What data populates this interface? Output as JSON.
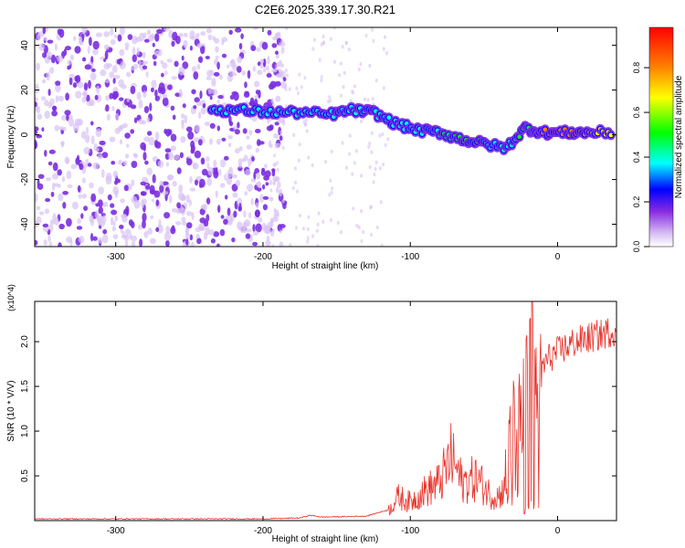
{
  "title": "C2E6.2025.339.17.30.R21",
  "colors": {
    "snr_line": "#e8342c",
    "axis": "#000000",
    "spectro_purple": "#7a2ee0",
    "spectro_light": "#d9c2f5"
  },
  "chart_data": [
    {
      "type": "heatmap",
      "xlabel": "Height of straight line (km)",
      "ylabel": "Frequency (Hz)",
      "xlim": [
        -355,
        40
      ],
      "ylim": [
        -50,
        48
      ],
      "x_ticks": [
        -300,
        -200,
        -100,
        0
      ],
      "x_tick_labels": [
        "-300",
        "-200",
        "-100",
        "0"
      ],
      "y_ticks": [
        -40,
        -20,
        0,
        20,
        40
      ],
      "y_tick_labels": [
        "-40",
        "-20",
        "0",
        "20",
        "40"
      ],
      "colorbar": {
        "label": "Normalized spectral amplitude",
        "range": [
          0,
          0.98
        ],
        "ticks": [
          0.0,
          0.2,
          0.4,
          0.6,
          0.8
        ],
        "tick_labels": [
          "0.0",
          "0.2",
          "0.4",
          "0.6",
          "0.8"
        ],
        "colormap": [
          "#ffffff",
          "#d7bff5",
          "#8a2be2",
          "#0000ff",
          "#00ffff",
          "#00ff00",
          "#ffff00",
          "#ff8000",
          "#ff0000"
        ]
      },
      "ridge": [
        {
          "x": -235,
          "y": 11,
          "amp": 0.45
        },
        {
          "x": -215,
          "y": 11,
          "amp": 0.5
        },
        {
          "x": -195,
          "y": 10,
          "amp": 0.55
        },
        {
          "x": -175,
          "y": 10,
          "amp": 0.55
        },
        {
          "x": -155,
          "y": 9,
          "amp": 0.5
        },
        {
          "x": -140,
          "y": 11,
          "amp": 0.5
        },
        {
          "x": -125,
          "y": 10,
          "amp": 0.45
        },
        {
          "x": -110,
          "y": 5,
          "amp": 0.5
        },
        {
          "x": -95,
          "y": 2,
          "amp": 0.55
        },
        {
          "x": -80,
          "y": 1,
          "amp": 0.55
        },
        {
          "x": -65,
          "y": -2,
          "amp": 0.6
        },
        {
          "x": -50,
          "y": -4,
          "amp": 0.55
        },
        {
          "x": -35,
          "y": -6,
          "amp": 0.5
        },
        {
          "x": -22,
          "y": 3,
          "amp": 0.6
        },
        {
          "x": -10,
          "y": 1,
          "amp": 0.8
        },
        {
          "x": 5,
          "y": 1,
          "amp": 0.85
        },
        {
          "x": 20,
          "y": 1,
          "amp": 0.8
        },
        {
          "x": 38,
          "y": 1,
          "amp": 0.75
        }
      ],
      "noise_region_xmax": -195
    },
    {
      "type": "line",
      "xlabel": "Height of straight line (km)",
      "ylabel": "SNR (10 * V/V)",
      "y_multiplier_label": "(x10^4)",
      "xlim": [
        -355,
        40
      ],
      "ylim": [
        0,
        2.45
      ],
      "x_ticks": [
        -300,
        -200,
        -100,
        0
      ],
      "x_tick_labels": [
        "-300",
        "-200",
        "-100",
        "0"
      ],
      "y_ticks": [
        0.5,
        1.0,
        1.5,
        2.0
      ],
      "y_tick_labels": [
        "0.5",
        "1.0",
        "1.5",
        "2.0"
      ],
      "series": [
        {
          "x": [
            -355,
            -300,
            -250,
            -200,
            -175,
            -168,
            -160,
            -130,
            -115,
            -108,
            -100,
            -90,
            -80,
            -72,
            -65,
            -55,
            -45,
            -38,
            -30,
            -25,
            -20,
            -18,
            -15,
            -12,
            -10,
            -5,
            0,
            5,
            10,
            20,
            30,
            40
          ],
          "y": [
            0.02,
            0.02,
            0.02,
            0.02,
            0.03,
            0.06,
            0.04,
            0.05,
            0.12,
            0.28,
            0.22,
            0.35,
            0.45,
            0.75,
            0.45,
            0.5,
            0.3,
            0.3,
            1.1,
            1.2,
            1.65,
            2.45,
            1.5,
            1.6,
            1.75,
            1.85,
            1.9,
            1.95,
            2.0,
            2.05,
            2.1,
            2.15
          ]
        }
      ]
    }
  ]
}
